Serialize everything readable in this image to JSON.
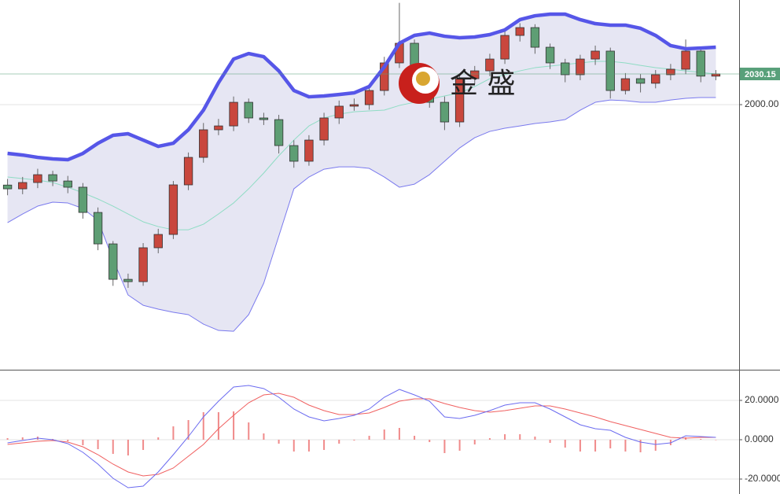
{
  "chart_data": [
    {
      "type": "candlestick",
      "categories": [
        null,
        null,
        null,
        null,
        null,
        null,
        null,
        null,
        null,
        null,
        null,
        null,
        null,
        null,
        null,
        null,
        null,
        null,
        null,
        null,
        null,
        null,
        null,
        null,
        null,
        null,
        null,
        null,
        null,
        null,
        null,
        null,
        null,
        null,
        null,
        null,
        null,
        null,
        null,
        null,
        null,
        null,
        null,
        null,
        null,
        null,
        null,
        null
      ],
      "open": [
        1921.0,
        1917.3,
        1923.5,
        1931.2,
        1925.0,
        1918.9,
        1894.1,
        1863.2,
        1828.4,
        1826.1,
        1859.4,
        1872.5,
        1921.2,
        1948.2,
        1975.3,
        1979.1,
        2002.3,
        1986.9,
        1985.3,
        1959.8,
        1944.4,
        1965.2,
        1986.9,
        1998.5,
        2000.0,
        2013.9,
        2041.0,
        2060.3,
        2029.4,
        2002.3,
        1983.0,
        2025.5,
        2033.2,
        2044.8,
        2068.0,
        2075.7,
        2056.4,
        2041.0,
        2029.4,
        2044.8,
        2052.6,
        2013.9,
        2025.5,
        2021.0,
        2029.4,
        2034.8,
        2052.6,
        2028.0
      ],
      "high": [
        1927,
        1929,
        1937,
        1935,
        1930,
        1923,
        1899,
        1866,
        1834,
        1864,
        1878,
        1925,
        1953,
        1982,
        1986,
        2008,
        2006,
        1992,
        1990,
        1965,
        1970,
        1992,
        2004,
        2006,
        2019,
        2047,
        2100,
        2064,
        2034,
        2008,
        2030,
        2038,
        2050,
        2074,
        2080,
        2079,
        2060,
        2045,
        2049,
        2058,
        2056,
        2031,
        2030,
        2034,
        2040,
        2064,
        2056,
        2034
      ],
      "low": [
        1911,
        1912,
        1918,
        1920,
        1913,
        1888,
        1857,
        1822,
        1820,
        1822,
        1854,
        1868,
        1916,
        1943,
        1970,
        1974,
        1982,
        1980,
        1952,
        1938,
        1940,
        1960,
        1981,
        1994,
        1995,
        2009,
        2036,
        2024,
        1997,
        1975,
        1978,
        2020,
        2028,
        2040,
        2062,
        2050,
        2035,
        2022,
        2024,
        2039,
        2006,
        2010,
        2012,
        2016,
        2024,
        2030,
        2022,
        2024
      ],
      "close": [
        1917.3,
        1923.5,
        1931.2,
        1925.0,
        1918.9,
        1894.1,
        1863.2,
        1828.4,
        1826.1,
        1859.4,
        1872.5,
        1921.2,
        1948.2,
        1975.3,
        1979.1,
        2002.3,
        1986.9,
        1985.3,
        1959.8,
        1944.4,
        1965.2,
        1986.9,
        1998.5,
        2000.0,
        2013.9,
        2041.0,
        2060.3,
        2029.4,
        2002.3,
        1983.0,
        2025.5,
        2033.2,
        2044.8,
        2068.0,
        2075.7,
        2056.4,
        2041.0,
        2029.4,
        2044.8,
        2052.6,
        2013.9,
        2025.5,
        2021.0,
        2029.4,
        2034.8,
        2052.6,
        2028.0,
        2030.15
      ],
      "up_color": "#c9473d",
      "down_color": "#5e9e74",
      "bands": {
        "upper": {
          "color": "#5656e8",
          "values": [
            1952.1,
            1950.5,
            1948.2,
            1946.7,
            1945.9,
            1952.1,
            1962.1,
            1969.9,
            1971.4,
            1965.2,
            1959.0,
            1962.1,
            1975.3,
            1994.6,
            2021.6,
            2044.8,
            2050.2,
            2047.1,
            2033.2,
            2013.9,
            2007.7,
            2008.5,
            2010.0,
            2011.6,
            2017.8,
            2037.1,
            2060.3,
            2068.0,
            2070.3,
            2067.2,
            2065.7,
            2066.5,
            2068.8,
            2073.4,
            2083.5,
            2087.3,
            2088.9,
            2088.9,
            2083.5,
            2079.6,
            2078.1,
            2078.1,
            2075.0,
            2068.0,
            2058.0,
            2054.9,
            2055.6,
            2056.4
          ]
        },
        "middle": {
          "color": "#8fdcc4",
          "values": [
            1928.9,
            1927.4,
            1925.8,
            1923.5,
            1918.9,
            1913.4,
            1907.3,
            1900.3,
            1892.6,
            1884.9,
            1880.2,
            1877.1,
            1877.1,
            1882.5,
            1892.6,
            1903.4,
            1917.3,
            1932.8,
            1949.8,
            1965.2,
            1979.1,
            1986.9,
            1990.7,
            1993.0,
            1993.8,
            1994.6,
            1999.2,
            2002.3,
            2005.4,
            2008.5,
            2011.6,
            2017.8,
            2025.5,
            2029.4,
            2033.2,
            2036.3,
            2037.9,
            2039.4,
            2041.0,
            2042.5,
            2042.5,
            2041.0,
            2038.6,
            2036.3,
            2034.8,
            2033.2,
            2031.7,
            2030.1
          ]
        },
        "lower": {
          "color": "#7a7aee",
          "values": [
            1884.1,
            1892.6,
            1900.3,
            1904.2,
            1903.4,
            1898.0,
            1886.4,
            1847.8,
            1813.0,
            1802.9,
            1799.1,
            1796.0,
            1793.7,
            1784.4,
            1778.2,
            1777.4,
            1793.7,
            1824.6,
            1870.9,
            1917.3,
            1928.9,
            1936.6,
            1938.9,
            1938.9,
            1937.4,
            1928.9,
            1918.9,
            1921.9,
            1931.2,
            1944.4,
            1957.5,
            1967.5,
            1973.7,
            1976.8,
            1979.1,
            1981.5,
            1983.0,
            1985.3,
            1994.6,
            2002.3,
            2004.6,
            2003.9,
            2002.3,
            2002.3,
            2004.6,
            2006.2,
            2007.0,
            2007.0
          ]
        },
        "fill": "#e6e6f3"
      },
      "last_price": 2030.15,
      "last_price_color": "#58a07a",
      "ylim": [
        1739.6,
        2102.8
      ],
      "yticks": [
        {
          "value": 2000,
          "label": "2000.00"
        }
      ],
      "grid": true,
      "watermark": "金 盛"
    },
    {
      "type": "macd",
      "dif": {
        "color": "#6b6bf0",
        "values": [
          -1.6,
          -0.4,
          0.8,
          0,
          -2.0,
          -6.4,
          -12.4,
          -19.6,
          -24.4,
          -23.6,
          -16.4,
          -7.6,
          1.6,
          11.6,
          19.6,
          26.8,
          27.6,
          26.0,
          21.6,
          15.6,
          11.6,
          9.6,
          10.8,
          12.4,
          15.6,
          21.6,
          25.6,
          22.8,
          19.6,
          11.6,
          10.8,
          12.4,
          14.8,
          17.6,
          18.8,
          18.8,
          15.6,
          11.6,
          7.6,
          5.6,
          4.8,
          1.2,
          -1.2,
          -2.4,
          -1.6,
          2.0,
          1.6,
          1.2
        ]
      },
      "dea": {
        "color": "#f06060",
        "values": [
          -2.4,
          -1.6,
          -0.8,
          -0.4,
          -1.2,
          -3.6,
          -7.6,
          -12.4,
          -16.4,
          -18.4,
          -17.6,
          -14.4,
          -8.4,
          -2.4,
          5.6,
          12.4,
          18.8,
          22.8,
          23.6,
          21.6,
          17.6,
          14.8,
          12.8,
          12.8,
          13.6,
          16.4,
          19.6,
          20.8,
          20.8,
          18.4,
          16.4,
          14.8,
          14.0,
          14.8,
          16.0,
          17.2,
          17.2,
          15.6,
          13.6,
          11.6,
          9.2,
          7.2,
          5.2,
          3.2,
          1.2,
          0.8,
          1.2,
          1.2
        ]
      },
      "histogram": {
        "color": "#f08a8a",
        "values": [
          0.8,
          1.2,
          1.6,
          0.4,
          -0.8,
          -2.8,
          -4.8,
          -7.2,
          -8.0,
          -5.2,
          1.2,
          6.8,
          10.0,
          14.0,
          14.0,
          14.4,
          8.8,
          3.2,
          -2.0,
          -6.0,
          -6.0,
          -5.2,
          -2.0,
          -0.4,
          2.0,
          5.2,
          6.0,
          2.0,
          -1.2,
          -6.8,
          -5.6,
          -2.4,
          0.8,
          2.8,
          2.8,
          1.6,
          -1.6,
          -4.0,
          -6.0,
          -6.0,
          -4.4,
          -6.0,
          -6.4,
          -5.6,
          -2.8,
          1.2,
          0.4,
          0
        ]
      },
      "ylim": [
        -27.6,
        35.6
      ],
      "yticks": [
        {
          "value": 20,
          "label": "20.0000"
        },
        {
          "value": 0,
          "label": "0.0000"
        },
        {
          "value": -20,
          "label": "-20.0000"
        }
      ],
      "grid": true
    }
  ]
}
